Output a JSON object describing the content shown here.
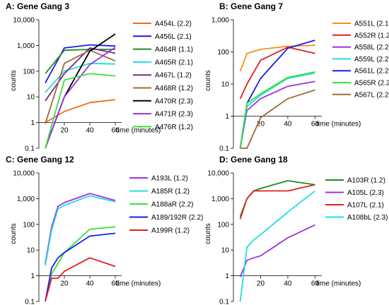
{
  "chart_data": [
    {
      "type": "line",
      "title": "A: Gene Gang 3",
      "xlabel": "time (minutes)",
      "ylabel": "counts",
      "y_scale": "log",
      "ylim": [
        0.1,
        10000
      ],
      "yticks": [
        "0.1",
        "1",
        "10",
        "100",
        "1,000",
        "10,000"
      ],
      "xlim": [
        0,
        65
      ],
      "xticks": [
        "20",
        "40",
        "60"
      ],
      "legend_position": "right",
      "x": [
        5,
        20,
        40,
        60
      ],
      "series": [
        {
          "name": "A454L (2.2)",
          "color": "#f26a1b",
          "values": [
            1,
            2.7,
            6,
            7.8
          ]
        },
        {
          "name": "A456L (2.1)",
          "color": "#1a1aee",
          "values": [
            35,
            800,
            1050,
            950
          ]
        },
        {
          "name": "A464R (1.1)",
          "color": "#1e8c1e",
          "values": [
            80,
            650,
            700,
            700
          ]
        },
        {
          "name": "A465R (2.1)",
          "color": "#22dddd",
          "values": [
            15,
            100,
            200,
            190
          ]
        },
        {
          "name": "A467L (1.2)",
          "color": "#7a2a86",
          "values": [
            7,
            80,
            800,
            500
          ]
        },
        {
          "name": "A468R (1.2)",
          "color": "#9c6b3c",
          "values": [
            0.9,
            200,
            650,
            250
          ]
        },
        {
          "name": "A470R (2.3)",
          "color": "#000000",
          "values": [
            0.1,
            10,
            600,
            2800
          ]
        },
        {
          "name": "A471R (2.3)",
          "color": "#9b30e8",
          "values": [
            0.1,
            10,
            180,
            850
          ]
        },
        {
          "name": "A476R (1.2)",
          "color": "#3ae03a",
          "values": [
            0.1,
            45,
            80,
            65
          ]
        }
      ]
    },
    {
      "type": "line",
      "title": "B: Gene Gang 7",
      "xlabel": "time (minutes)",
      "ylabel": "counts",
      "y_scale": "log",
      "ylim": [
        0.1,
        1000
      ],
      "yticks": [
        "0.1",
        "1",
        "10",
        "100",
        "1,000"
      ],
      "xlim": [
        0,
        65
      ],
      "xticks": [
        "20",
        "40",
        "60"
      ],
      "legend_position": "right",
      "x": [
        5,
        10,
        20,
        40,
        60
      ],
      "series": [
        {
          "name": "A551L (2.1)",
          "color": "#f5901e",
          "values": [
            25,
            90,
            120,
            150,
            160
          ]
        },
        {
          "name": "A552R (1.2)",
          "color": "#e0201e",
          "values": [
            3.5,
            10,
            55,
            140,
            90
          ]
        },
        {
          "name": "A558L (2.2)",
          "color": "#9b30e8",
          "values": [
            0.1,
            1.5,
            3.5,
            8.5,
            12
          ]
        },
        {
          "name": "A559L (2.2)",
          "color": "#22dddd",
          "values": [
            0.1,
            2,
            4.5,
            15,
            22
          ]
        },
        {
          "name": "A561L (2.2)",
          "color": "#1a1aee",
          "values": [
            0.1,
            2.5,
            15,
            130,
            230
          ]
        },
        {
          "name": "A565R (2.2)",
          "color": "#3ae03a",
          "values": [
            0.1,
            2.5,
            5,
            16,
            24
          ]
        },
        {
          "name": "A567L (2.2)",
          "color": "#9c6b3c",
          "values": [
            0.1,
            0.1,
            0.9,
            3.5,
            6.5
          ]
        }
      ]
    },
    {
      "type": "line",
      "title": "C: Gene Gang 12",
      "xlabel": "time (minutes)",
      "ylabel": "counts",
      "y_scale": "log",
      "ylim": [
        0.1,
        10000
      ],
      "yticks": [
        "0.1",
        "1",
        "10",
        "100",
        "1,000",
        "10,000"
      ],
      "xlim": [
        0,
        65
      ],
      "xticks": [
        "20",
        "40",
        "60"
      ],
      "legend_position": "right",
      "x": [
        5,
        10,
        15,
        20,
        40,
        60
      ],
      "series": [
        {
          "name": "A193L (1.2)",
          "color": "#9b30e8",
          "values": [
            3,
            80,
            500,
            700,
            1600,
            850
          ]
        },
        {
          "name": "A185R (1.2)",
          "color": "#22dddd",
          "values": [
            2.5,
            60,
            400,
            550,
            1300,
            750
          ]
        },
        {
          "name": "A188aR (2.2)",
          "color": "#3ae03a",
          "values": [
            0.1,
            1.2,
            3,
            8,
            65,
            80
          ]
        },
        {
          "name": "A189/192R (2.2)",
          "color": "#1a1aee",
          "values": [
            0.1,
            2,
            5,
            8,
            35,
            45
          ]
        },
        {
          "name": "A199R (1.2)",
          "color": "#e0201e",
          "values": [
            0.1,
            0.8,
            0.8,
            1.5,
            5,
            2.3
          ]
        }
      ]
    },
    {
      "type": "line",
      "title": "D: Gene Gang 18",
      "xlabel": "time (minutes)",
      "ylabel": "counts",
      "y_scale": "log",
      "ylim": [
        0.1,
        10000
      ],
      "yticks": [
        "0.1",
        "1",
        "10",
        "100",
        "1,000",
        "10,000"
      ],
      "xlim": [
        0,
        65
      ],
      "xticks": [
        "20",
        "40",
        "60"
      ],
      "legend_position": "right",
      "x": [
        5,
        10,
        15,
        20,
        40,
        60
      ],
      "series": [
        {
          "name": "A103R (1.2)",
          "color": "#1e8c1e",
          "values": [
            200,
            1000,
            2000,
            2500,
            5000,
            3500
          ]
        },
        {
          "name": "A105L (2.3)",
          "color": "#9b30e8",
          "values": [
            0.9,
            4,
            5,
            6,
            30,
            95
          ]
        },
        {
          "name": "A107L (2.1)",
          "color": "#e0201e",
          "values": [
            160,
            1000,
            2000,
            2000,
            2000,
            3500
          ]
        },
        {
          "name": "A108bL (2.3)",
          "color": "#22dddd",
          "values": [
            0.1,
            13,
            25,
            40,
            300,
            2000
          ]
        }
      ]
    }
  ]
}
